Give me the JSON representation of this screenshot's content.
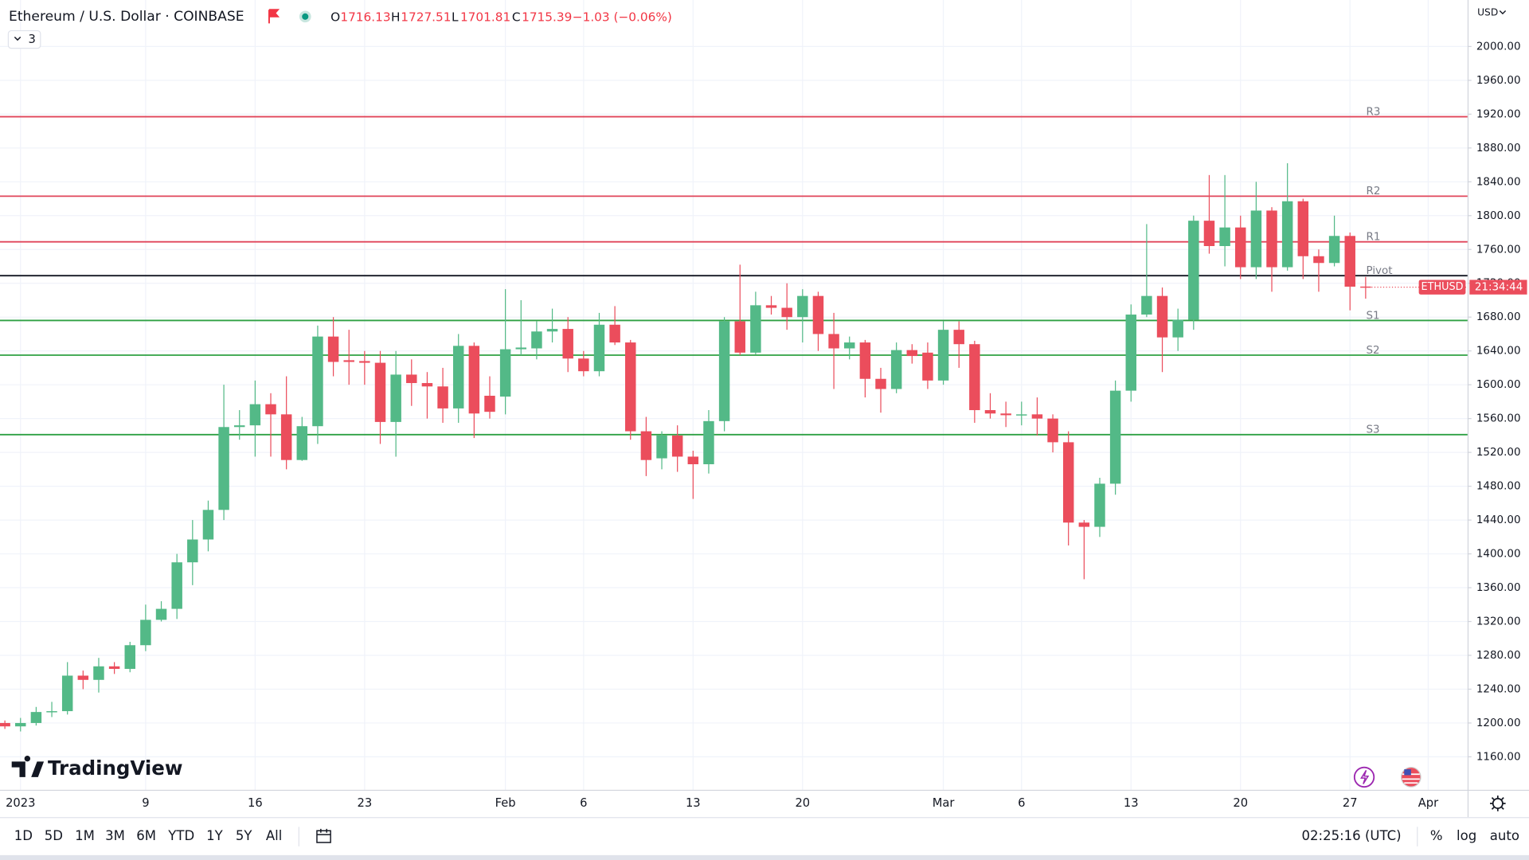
{
  "header": {
    "title": "Ethereum / U.S. Dollar · COINBASE",
    "ohlc_labels": [
      "O",
      "H",
      "L",
      "C"
    ],
    "change": "−1.03 (−0.06%)",
    "indicator_count": "3"
  },
  "logo": "TradingView",
  "toolbar": {
    "ranges": [
      "1D",
      "5D",
      "1M",
      "3M",
      "6M",
      "YTD",
      "1Y",
      "5Y",
      "All"
    ],
    "time": "02:25:16 (UTC)",
    "options": [
      "%",
      "log",
      "auto"
    ]
  },
  "chart_data": {
    "type": "candlestick",
    "currency": "USD",
    "categories": [
      null,
      "2023",
      null,
      null,
      null,
      null,
      null,
      null,
      null,
      "9",
      null,
      null,
      null,
      null,
      null,
      null,
      "16",
      null,
      null,
      null,
      null,
      null,
      null,
      "23",
      null,
      null,
      null,
      null,
      null,
      null,
      null,
      null,
      "Feb",
      null,
      null,
      null,
      null,
      "6",
      null,
      null,
      null,
      null,
      null,
      null,
      "13",
      null,
      null,
      null,
      null,
      null,
      null,
      "20",
      null,
      null,
      null,
      null,
      null,
      null,
      null,
      null,
      "Mar",
      null,
      null,
      null,
      null,
      "6",
      null,
      null,
      null,
      null,
      null,
      null,
      "13",
      null,
      null,
      null,
      null,
      null,
      null,
      "20",
      null,
      null,
      null,
      null,
      null,
      null,
      "27",
      null,
      null,
      null,
      null,
      "Apr"
    ],
    "open": [
      1200,
      1196,
      1200,
      1213,
      1214,
      1256,
      1251,
      1267,
      1264,
      1292,
      1322,
      1335,
      1390,
      1417,
      1452,
      1550,
      1552,
      1577,
      1565,
      1511,
      1551,
      1657,
      1629,
      1628,
      1626,
      1556,
      1612,
      1602,
      1598,
      1572,
      1646,
      1587,
      1586,
      1642,
      1643,
      1663,
      1666,
      1631,
      1616,
      1671,
      1650,
      1545,
      1513,
      1540,
      1515,
      1506,
      1557,
      1675,
      1638,
      1694,
      1691,
      1680,
      1705,
      1660,
      1643,
      1650,
      1607,
      1595,
      1641,
      1638,
      1605,
      1665,
      1648,
      1570,
      1566,
      1564,
      1565,
      1560,
      1532,
      1437,
      1432,
      1483,
      1593,
      1683,
      1705,
      1656,
      1677,
      1794,
      1764,
      1786,
      1739,
      1806,
      1739,
      1817,
      1752,
      1744,
      1776,
      1716.13,
      null,
      null,
      null,
      null
    ],
    "high": [
      1203,
      1206,
      1219,
      1225,
      1272,
      1262,
      1277,
      1272,
      1296,
      1340,
      1344,
      1400,
      1440,
      1463,
      1600,
      1570,
      1605,
      1590,
      1610,
      1562,
      1670,
      1680,
      1665,
      1640,
      1640,
      1640,
      1630,
      1615,
      1620,
      1660,
      1650,
      1610,
      1713,
      1700,
      1675,
      1690,
      1680,
      1640,
      1685,
      1693,
      1653,
      1562,
      1545,
      1552,
      1522,
      1570,
      1680,
      1742,
      1710,
      1705,
      1720,
      1713,
      1710,
      1685,
      1657,
      1653,
      1620,
      1650,
      1648,
      1650,
      1675,
      1675,
      1652,
      1590,
      1580,
      1580,
      1585,
      1565,
      1545,
      1440,
      1490,
      1605,
      1695,
      1790,
      1715,
      1690,
      1800,
      1848,
      1848,
      1800,
      1840,
      1810,
      1862,
      1820,
      1760,
      1800,
      1780,
      1727.51,
      null,
      null,
      null,
      null
    ],
    "low": [
      1193,
      1190,
      1197,
      1207,
      1210,
      1240,
      1236,
      1258,
      1260,
      1285,
      1320,
      1323,
      1363,
      1403,
      1440,
      1535,
      1515,
      1515,
      1500,
      1510,
      1530,
      1610,
      1600,
      1600,
      1530,
      1515,
      1575,
      1560,
      1555,
      1555,
      1537,
      1560,
      1565,
      1635,
      1630,
      1650,
      1615,
      1610,
      1610,
      1647,
      1535,
      1492,
      1500,
      1497,
      1465,
      1495,
      1545,
      1635,
      1636,
      1683,
      1665,
      1650,
      1640,
      1595,
      1630,
      1585,
      1567,
      1590,
      1625,
      1595,
      1600,
      1620,
      1555,
      1560,
      1550,
      1552,
      1540,
      1520,
      1410,
      1370,
      1420,
      1470,
      1580,
      1680,
      1615,
      1640,
      1665,
      1755,
      1740,
      1725,
      1725,
      1710,
      1735,
      1725,
      1710,
      1740,
      1688,
      1701.81,
      null,
      null,
      null,
      null
    ],
    "close": [
      1196,
      1200,
      1213,
      1214,
      1256,
      1251,
      1267,
      1264,
      1292,
      1322,
      1335,
      1390,
      1417,
      1452,
      1550,
      1552,
      1577,
      1565,
      1511,
      1551,
      1657,
      1627,
      1627,
      1626,
      1556,
      1612,
      1602,
      1598,
      1572,
      1646,
      1566,
      1568,
      1642,
      1644,
      1663,
      1666,
      1631,
      1616,
      1671,
      1650,
      1545,
      1511,
      1540,
      1515,
      1506,
      1557,
      1675,
      1638,
      1694,
      1691,
      1680,
      1705,
      1660,
      1643,
      1650,
      1607,
      1595,
      1641,
      1634,
      1605,
      1665,
      1648,
      1570,
      1566,
      1564,
      1565,
      1560,
      1532,
      1437,
      1432,
      1483,
      1593,
      1683,
      1705,
      1656,
      1677,
      1794,
      1764,
      1786,
      1739,
      1806,
      1739,
      1817,
      1752,
      1744,
      1776,
      1716,
      1715.39,
      null,
      null,
      null,
      null
    ],
    "up_color": "#53b987",
    "down_color": "#eb4d5c",
    "ylim": [
      1121,
      2055
    ],
    "yticks": [
      {
        "value": 1160,
        "label": "1160.00"
      },
      {
        "value": 1200,
        "label": "1200.00"
      },
      {
        "value": 1240,
        "label": "1240.00"
      },
      {
        "value": 1280,
        "label": "1280.00"
      },
      {
        "value": 1320,
        "label": "1320.00"
      },
      {
        "value": 1360,
        "label": "1360.00"
      },
      {
        "value": 1400,
        "label": "1400.00"
      },
      {
        "value": 1440,
        "label": "1440.00"
      },
      {
        "value": 1480,
        "label": "1480.00"
      },
      {
        "value": 1520,
        "label": "1520.00"
      },
      {
        "value": 1560,
        "label": "1560.00"
      },
      {
        "value": 1600,
        "label": "1600.00"
      },
      {
        "value": 1640,
        "label": "1640.00"
      },
      {
        "value": 1680,
        "label": "1680.00"
      },
      {
        "value": 1720,
        "label": "1720.00"
      },
      {
        "value": 1760,
        "label": "1760.00"
      },
      {
        "value": 1800,
        "label": "1800.00"
      },
      {
        "value": 1840,
        "label": "1840.00"
      },
      {
        "value": 1880,
        "label": "1880.00"
      },
      {
        "value": 1920,
        "label": "1920.00"
      },
      {
        "value": 1960,
        "label": "1960.00"
      },
      {
        "value": 2000,
        "label": "2000.00"
      }
    ],
    "grid": true,
    "levels": [
      {
        "name": "R3",
        "value": 1917,
        "color": "#e0455a"
      },
      {
        "name": "R2",
        "value": 1823,
        "color": "#e0455a"
      },
      {
        "name": "R1",
        "value": 1769,
        "color": "#e0455a"
      },
      {
        "name": "Pivot",
        "value": 1729,
        "color": "#131722"
      },
      {
        "name": "S1",
        "value": 1676,
        "color": "#2ea043"
      },
      {
        "name": "S2",
        "value": 1635,
        "color": "#2ea043"
      },
      {
        "name": "S3",
        "value": 1541,
        "color": "#2ea043"
      }
    ],
    "price_tag": {
      "symbol": "ETHUSD",
      "countdown": "21:34:44"
    }
  }
}
